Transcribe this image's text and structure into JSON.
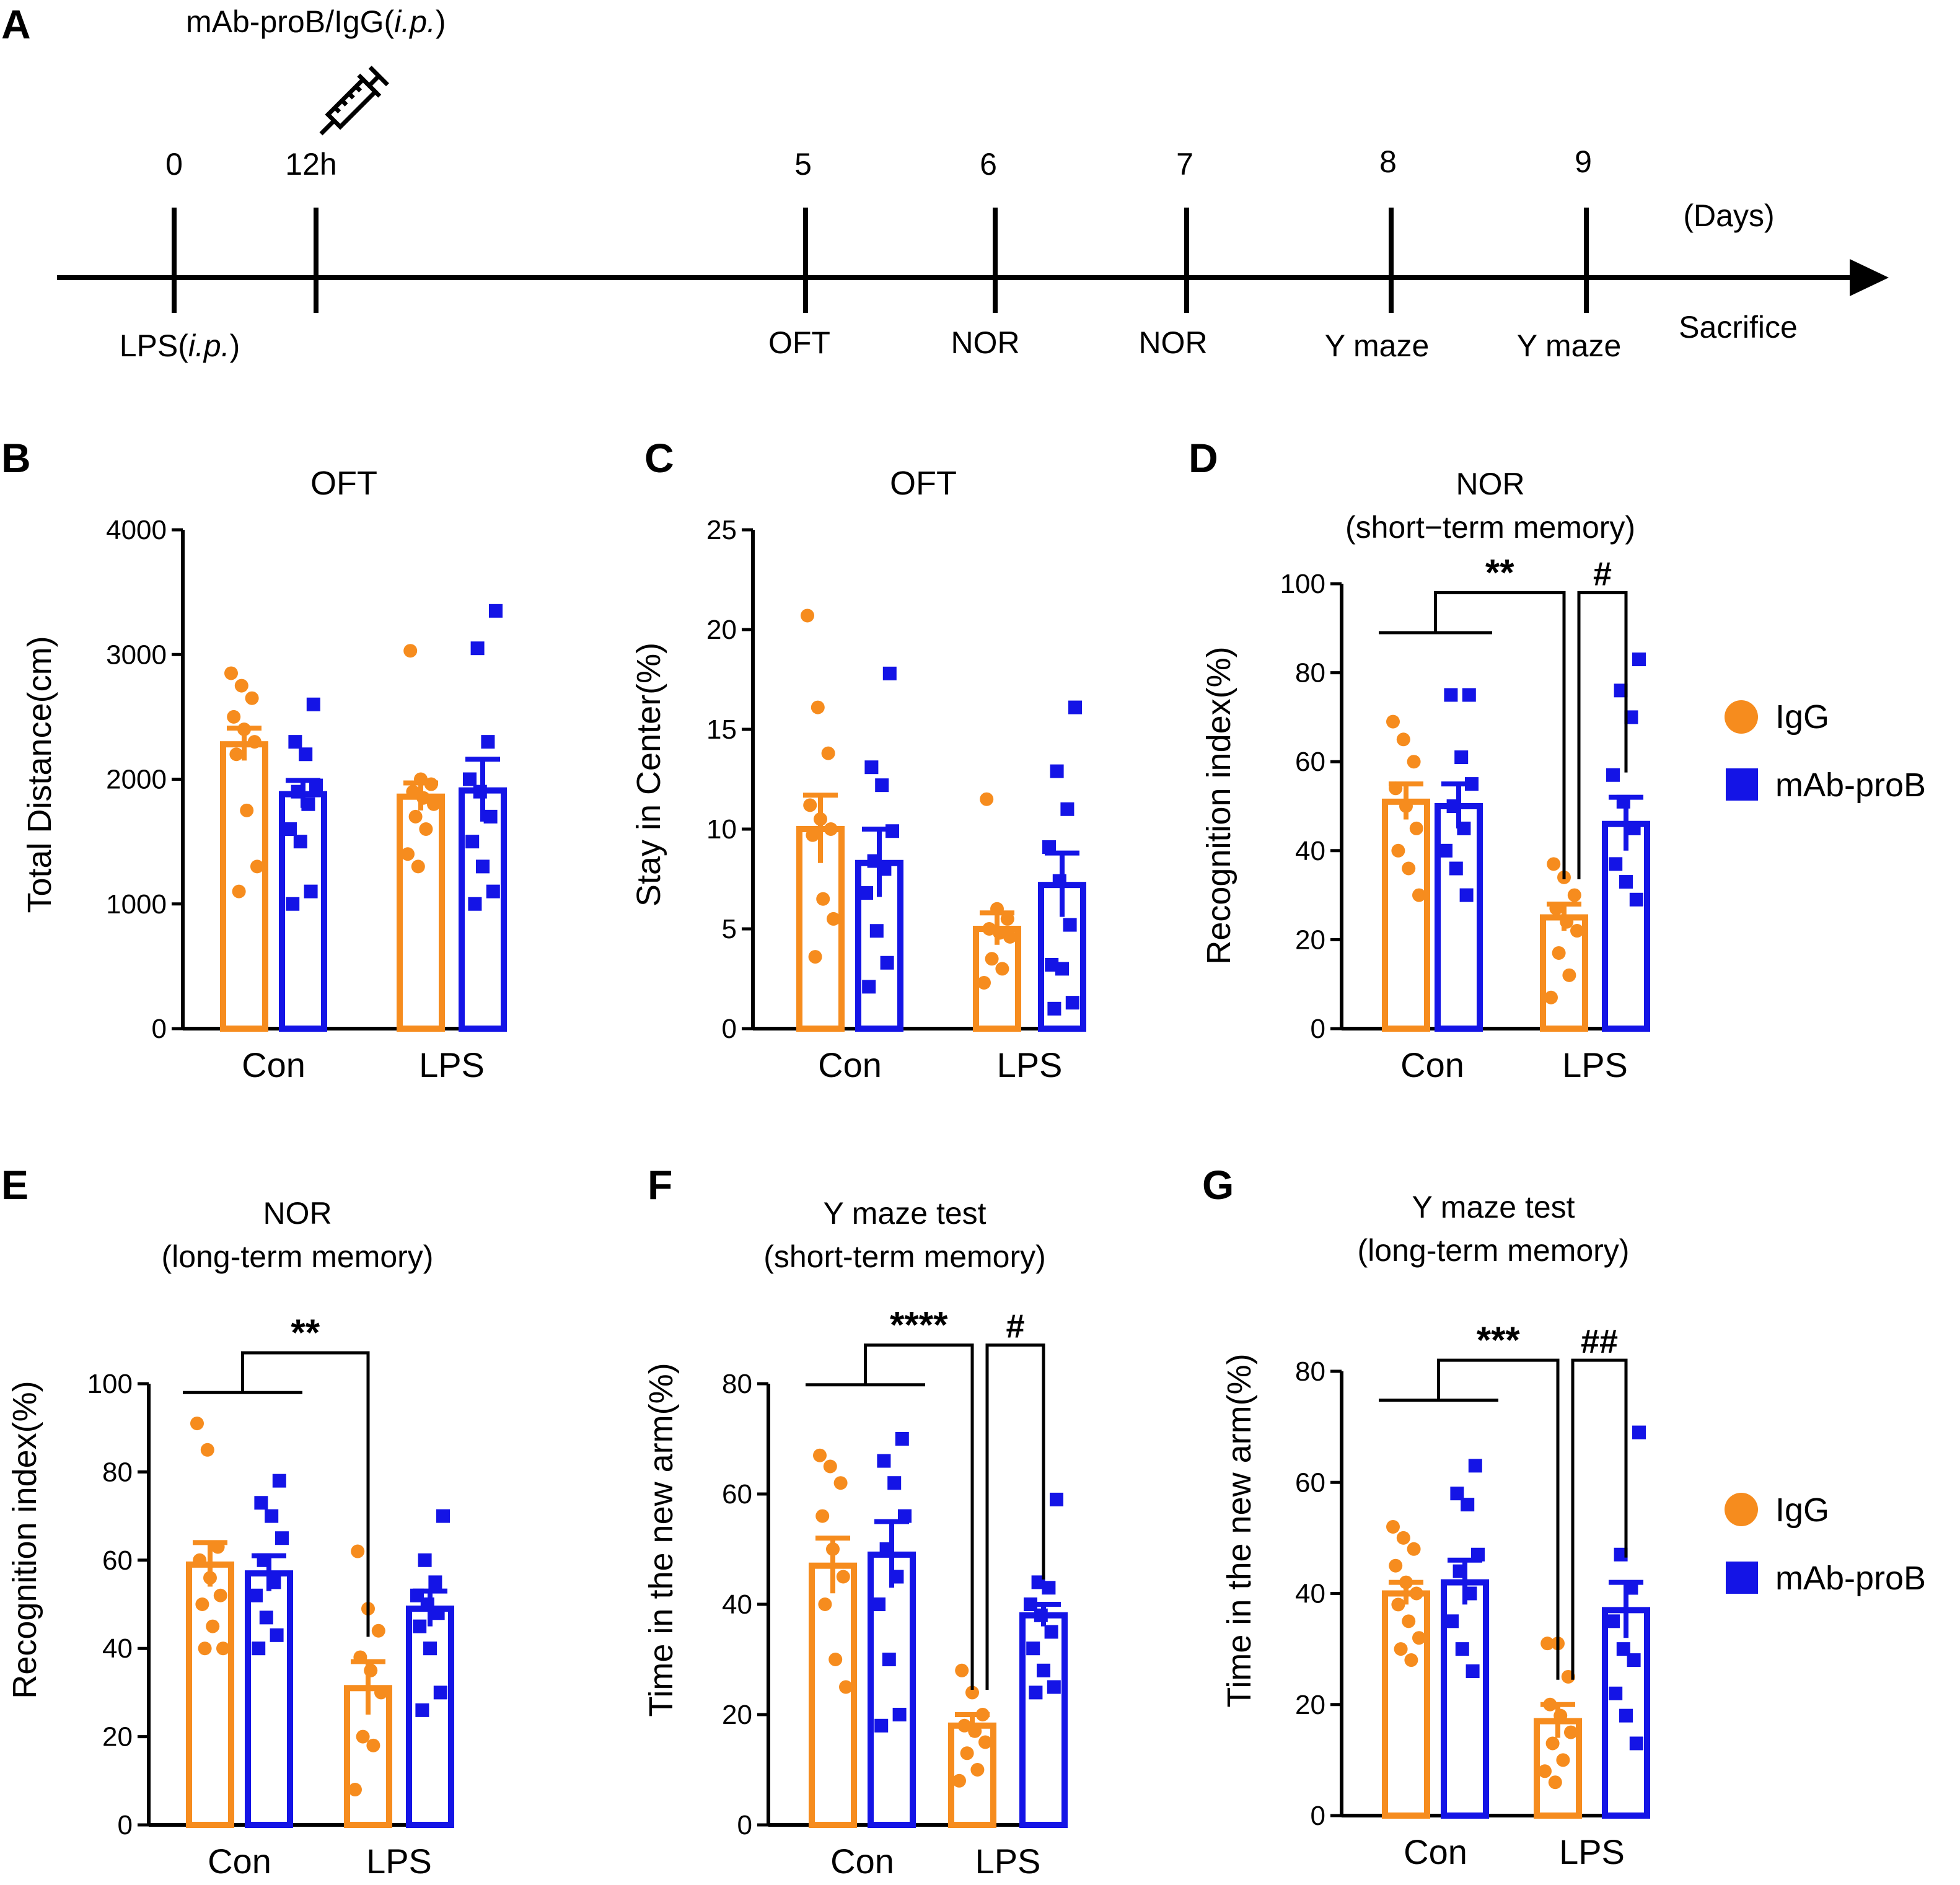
{
  "colors": {
    "igg": "#F68C1E",
    "mab": "#1414E6",
    "ink": "#000000"
  },
  "timeline": {
    "letter": "A",
    "injection_label": "mAb-proB/IgG(",
    "injection_label_italic": "i.p.",
    "injection_label_close": ")",
    "injection_icon": "syringe-icon",
    "unit_label": "(Days)",
    "ticks": [
      {
        "top": "0",
        "bottom": "LPS(",
        "bottom_italic": "i.p.",
        "bottom_close": ")"
      },
      {
        "top": "12h",
        "bottom": ""
      },
      {
        "top": "5",
        "bottom": "OFT"
      },
      {
        "top": "6",
        "bottom": "NOR"
      },
      {
        "top": "7",
        "bottom": "NOR"
      },
      {
        "top": "8",
        "bottom": "Y maze"
      },
      {
        "top": "9",
        "bottom": "Y maze"
      }
    ],
    "end_label": "Sacrifice"
  },
  "legend": {
    "items": [
      "IgG",
      "mAb-proB"
    ]
  },
  "chart_data": [
    {
      "id": "B",
      "type": "bar",
      "title": [
        "OFT"
      ],
      "xlabel": "",
      "ylabel": "Total Distance(cm)",
      "ylim": [
        0,
        4000
      ],
      "yticks": [
        "0",
        "1000",
        "2000",
        "3000",
        "4000"
      ],
      "categories": [
        "Con",
        "LPS"
      ],
      "series": [
        {
          "name": "IgG",
          "values": [
            2280,
            1860
          ],
          "sem": [
            130,
            110
          ],
          "points": [
            [
              2850,
              2750,
              2650,
              2500,
              2400,
              2300,
              2200,
              1750,
              1300,
              1100
            ],
            [
              3030,
              2000,
              1960,
              1900,
              1850,
              1800,
              1700,
              1600,
              1400,
              1300
            ]
          ]
        },
        {
          "name": "mAb-proB",
          "values": [
            1880,
            1910
          ],
          "sem": [
            110,
            250
          ],
          "points": [
            [
              2600,
              2300,
              2200,
              1950,
              1900,
              1800,
              1600,
              1500,
              1100,
              1000
            ],
            [
              3350,
              3050,
              2300,
              2000,
              1900,
              1700,
              1500,
              1300,
              1100,
              1000
            ]
          ]
        }
      ],
      "significance": []
    },
    {
      "id": "C",
      "type": "bar",
      "title": [
        "OFT"
      ],
      "xlabel": "",
      "ylabel": "Stay in Center(%)",
      "ylim": [
        0,
        25
      ],
      "yticks": [
        "0",
        "5",
        "10",
        "15",
        "20",
        "25"
      ],
      "categories": [
        "Con",
        "LPS"
      ],
      "series": [
        {
          "name": "IgG",
          "values": [
            10.0,
            5.0
          ],
          "sem": [
            1.7,
            0.8
          ],
          "points": [
            [
              20.7,
              16.1,
              13.8,
              11.2,
              10.5,
              10.0,
              9.7,
              6.5,
              5.5,
              3.6
            ],
            [
              11.5,
              6.0,
              5.5,
              5.0,
              4.8,
              4.6,
              3.5,
              3.0,
              2.3
            ]
          ]
        },
        {
          "name": "mAb-proB",
          "values": [
            8.3,
            7.2
          ],
          "sem": [
            1.7,
            1.6
          ],
          "points": [
            [
              17.8,
              13.1,
              12.2,
              9.9,
              8.4,
              8.0,
              6.8,
              4.9,
              3.3,
              2.1
            ],
            [
              16.1,
              12.9,
              11.0,
              9.1,
              7.4,
              5.2,
              3.2,
              3.0,
              1.3,
              1.0
            ]
          ]
        }
      ],
      "significance": []
    },
    {
      "id": "D",
      "type": "bar",
      "title": [
        "NOR",
        "(short−term memory)"
      ],
      "xlabel": "",
      "ylabel": "Recognition index(%)",
      "ylim": [
        0,
        100
      ],
      "yticks": [
        "0",
        "20",
        "40",
        "60",
        "80",
        "100"
      ],
      "categories": [
        "Con",
        "LPS"
      ],
      "series": [
        {
          "name": "IgG",
          "values": [
            51,
            25
          ],
          "sem": [
            4,
            3
          ],
          "points": [
            [
              69,
              65,
              60,
              54,
              50,
              45,
              40,
              36,
              30
            ],
            [
              37,
              34,
              30,
              27,
              24,
              22,
              17,
              12,
              7
            ]
          ]
        },
        {
          "name": "mAb-proB",
          "values": [
            50,
            46
          ],
          "sem": [
            5,
            6
          ],
          "points": [
            [
              75,
              75,
              61,
              55,
              50,
              45,
              40,
              36,
              30
            ],
            [
              83,
              76,
              70,
              57,
              51,
              45,
              37,
              33,
              29
            ]
          ]
        }
      ],
      "significance": [
        {
          "label": "**",
          "from": "Con",
          "to": "LPS-IgG",
          "y": 98
        },
        {
          "label": "#",
          "from": "LPS-IgG",
          "to": "LPS-mAb-proB",
          "y": 98
        }
      ]
    },
    {
      "id": "E",
      "type": "bar",
      "title": [
        "NOR",
        "(long-term memory)"
      ],
      "xlabel": "",
      "ylabel": "Recognition index(%)",
      "ylim": [
        0,
        100
      ],
      "yticks": [
        "0",
        "20",
        "40",
        "60",
        "80",
        "100"
      ],
      "categories": [
        "Con",
        "LPS"
      ],
      "series": [
        {
          "name": "IgG",
          "values": [
            59,
            31
          ],
          "sem": [
            5,
            6
          ],
          "points": [
            [
              91,
              85,
              63,
              60,
              56,
              52,
              50,
              45,
              40,
              40
            ],
            [
              62,
              49,
              44,
              38,
              35,
              30,
              20,
              18,
              8
            ]
          ]
        },
        {
          "name": "mAb-proB",
          "values": [
            57,
            49
          ],
          "sem": [
            4,
            4
          ],
          "points": [
            [
              78,
              73,
              70,
              65,
              60,
              55,
              52,
              47,
              43,
              40
            ],
            [
              70,
              60,
              55,
              52,
              50,
              48,
              45,
              40,
              30,
              26
            ]
          ]
        }
      ],
      "significance": [
        {
          "label": "**",
          "from": "Con",
          "to": "LPS-IgG",
          "y": 107
        }
      ]
    },
    {
      "id": "F",
      "type": "bar",
      "title": [
        "Y maze test",
        "(short-term memory)"
      ],
      "xlabel": "",
      "ylabel": "Time in the new arm(%)",
      "ylim": [
        0,
        80
      ],
      "yticks": [
        "0",
        "20",
        "40",
        "60",
        "80"
      ],
      "categories": [
        "Con",
        "LPS"
      ],
      "series": [
        {
          "name": "IgG",
          "values": [
            47,
            18
          ],
          "sem": [
            5,
            2
          ],
          "points": [
            [
              67,
              65,
              62,
              56,
              50,
              45,
              40,
              30,
              25
            ],
            [
              28,
              24,
              20,
              18,
              17,
              15,
              13,
              10,
              8
            ]
          ]
        },
        {
          "name": "mAb-proB",
          "values": [
            49,
            38
          ],
          "sem": [
            6,
            2
          ],
          "points": [
            [
              70,
              66,
              62,
              56,
              50,
              45,
              40,
              30,
              20,
              18
            ],
            [
              59,
              44,
              43,
              40,
              38,
              35,
              32,
              28,
              25,
              24
            ]
          ]
        }
      ],
      "significance": [
        {
          "label": "****",
          "from": "Con",
          "to": "LPS-IgG",
          "y": 87
        },
        {
          "label": "#",
          "from": "LPS-IgG",
          "to": "LPS-mAb-proB",
          "y": 87
        }
      ]
    },
    {
      "id": "G",
      "type": "bar",
      "title": [
        "Y maze test",
        "(long-term memory)"
      ],
      "xlabel": "",
      "ylabel": "Time in the new arm(%)",
      "ylim": [
        0,
        80
      ],
      "yticks": [
        "0",
        "20",
        "40",
        "60",
        "80"
      ],
      "categories": [
        "Con",
        "LPS"
      ],
      "series": [
        {
          "name": "IgG",
          "values": [
            40,
            17
          ],
          "sem": [
            2,
            3
          ],
          "points": [
            [
              52,
              50,
              48,
              45,
              42,
              40,
              38,
              35,
              32,
              30,
              28
            ],
            [
              31,
              31,
              25,
              20,
              18,
              15,
              13,
              10,
              8,
              6
            ]
          ]
        },
        {
          "name": "mAb-proB",
          "values": [
            42,
            37
          ],
          "sem": [
            4,
            5
          ],
          "points": [
            [
              63,
              58,
              56,
              47,
              44,
              40,
              35,
              30,
              26
            ],
            [
              69,
              47,
              41,
              35,
              30,
              28,
              22,
              18,
              13
            ]
          ]
        }
      ],
      "significance": [
        {
          "label": "***",
          "from": "Con",
          "to": "LPS-IgG",
          "y": 82
        },
        {
          "label": "##",
          "from": "LPS-IgG",
          "to": "LPS-mAb-proB",
          "y": 82
        }
      ]
    }
  ]
}
